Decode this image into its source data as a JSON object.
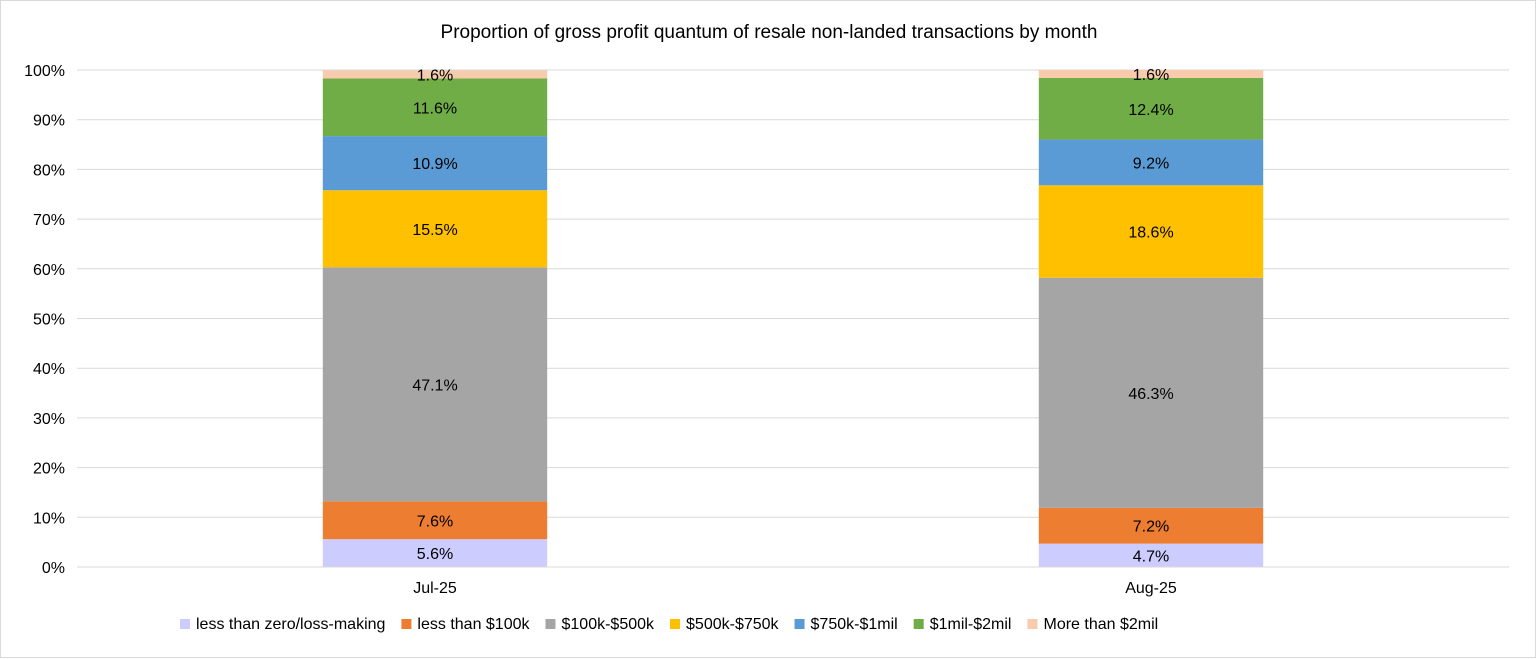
{
  "chart_data": {
    "type": "bar",
    "stacked": true,
    "title": "Proportion of gross profit quantum of resale non-landed transactions by month",
    "categories": [
      "Jul-25",
      "Aug-25"
    ],
    "y_ticks": [
      "0%",
      "10%",
      "20%",
      "30%",
      "40%",
      "50%",
      "60%",
      "70%",
      "80%",
      "90%",
      "100%"
    ],
    "ylim": [
      0,
      100
    ],
    "grid": true,
    "legend_position": "bottom",
    "series": [
      {
        "name": "less than zero/loss-making",
        "color": "#ccccff",
        "values": [
          5.6,
          4.7
        ],
        "labels": [
          "5.6%",
          "4.7%"
        ]
      },
      {
        "name": "less than $100k",
        "color": "#ed7d31",
        "values": [
          7.6,
          7.2
        ],
        "labels": [
          "7.6%",
          "7.2%"
        ]
      },
      {
        "name": "$100k-$500k",
        "color": "#a5a5a5",
        "values": [
          47.1,
          46.3
        ],
        "labels": [
          "47.1%",
          "46.3%"
        ]
      },
      {
        "name": "$500k-$750k",
        "color": "#ffc000",
        "values": [
          15.5,
          18.6
        ],
        "labels": [
          "15.5%",
          "18.6%"
        ]
      },
      {
        "name": "$750k-$1mil",
        "color": "#5b9bd5",
        "values": [
          10.9,
          9.2
        ],
        "labels": [
          "10.9%",
          "9.2%"
        ]
      },
      {
        "name": "$1mil-$2mil",
        "color": "#70ad47",
        "values": [
          11.6,
          12.4
        ],
        "labels": [
          "11.6%",
          "12.4%"
        ]
      },
      {
        "name": "More than $2mil",
        "color": "#f8cbad",
        "values": [
          1.6,
          1.6
        ],
        "labels": [
          "1.6%",
          "1.6%"
        ]
      }
    ]
  }
}
